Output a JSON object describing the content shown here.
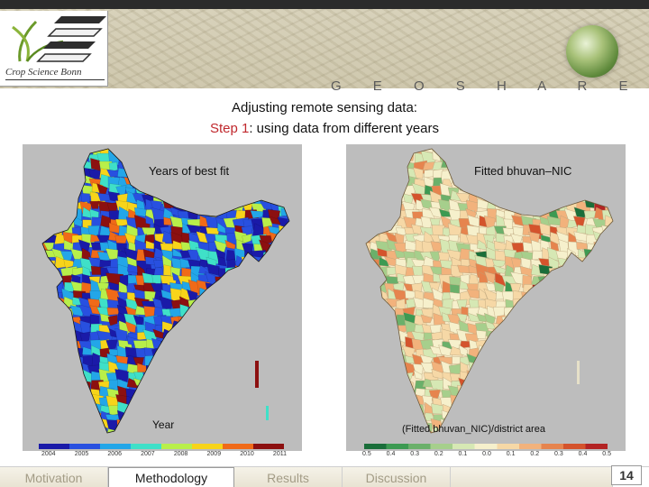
{
  "header": {
    "logo_text": "Crop Science Bonn",
    "brand": "G E O S H A R E"
  },
  "title": {
    "line1": "Adjusting remote sensing data:",
    "step_label": "Step 1",
    "line2_rest": ": using data from different years"
  },
  "left_map": {
    "label": "Years of best fit",
    "axis_label": "Year",
    "ticks": [
      "2004",
      "2005",
      "2006",
      "2007",
      "2008",
      "2009",
      "2010",
      "2011"
    ],
    "colors": [
      "#1a1aa8",
      "#2850e0",
      "#23a6e8",
      "#3fe0c8",
      "#b8ef4a",
      "#f7d41a",
      "#f06a18",
      "#8c1010"
    ]
  },
  "right_map": {
    "label": "Fitted bhuvan–NIC",
    "axis_label": "(Fitted bhuvan_NIC)/district area",
    "ticks": [
      "0.5",
      "0.4",
      "0.3",
      "0.2",
      "0.1",
      "0.0",
      "0.1",
      "0.2",
      "0.3",
      "0.4",
      "0.5"
    ],
    "colors": [
      "#1a6e3a",
      "#3c9a52",
      "#6ab06a",
      "#a6cf8c",
      "#d6e8b4",
      "#f6f0cc",
      "#f6d8a6",
      "#f2b27c",
      "#e6844e",
      "#d4532c",
      "#b32424"
    ]
  },
  "footer": {
    "tabs": [
      {
        "label": "Motivation",
        "active": false
      },
      {
        "label": "Methodology",
        "active": true
      },
      {
        "label": "Results",
        "active": false
      },
      {
        "label": "Discussion",
        "active": false
      },
      {
        "label": "",
        "active": false
      }
    ],
    "page": "14"
  }
}
